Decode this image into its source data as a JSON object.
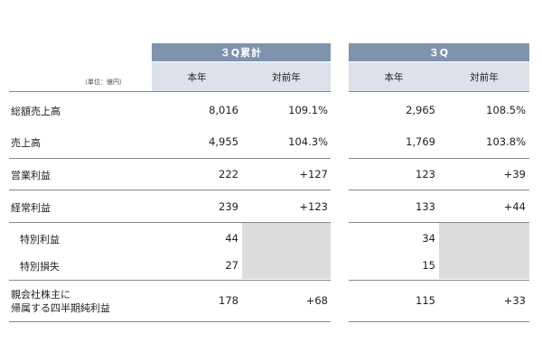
{
  "header": {
    "group1_title": "３Q累計",
    "group2_title": "３Q",
    "unit": "（単位：億円）",
    "col_current": "本年",
    "col_yoy": "対前年"
  },
  "rows": [
    {
      "label": "総額売上高",
      "g1_cur": "8,016",
      "g1_yoy": "109.1%",
      "g2_cur": "2,965",
      "g2_yoy": "108.5%"
    },
    {
      "label": "売上高",
      "g1_cur": "4,955",
      "g1_yoy": "104.3%",
      "g2_cur": "1,769",
      "g2_yoy": "103.8%"
    },
    {
      "label": "営業利益",
      "g1_cur": "222",
      "g1_yoy": "+127",
      "g2_cur": "123",
      "g2_yoy": "+39"
    },
    {
      "label": "経常利益",
      "g1_cur": "239",
      "g1_yoy": "+123",
      "g2_cur": "133",
      "g2_yoy": "+44"
    },
    {
      "label": "特別利益",
      "g1_cur": "44",
      "g1_yoy": "",
      "g2_cur": "34",
      "g2_yoy": ""
    },
    {
      "label": "特別損失",
      "g1_cur": "27",
      "g1_yoy": "",
      "g2_cur": "15",
      "g2_yoy": ""
    },
    {
      "label_line1": "親会社株主に",
      "label_line2": "帰属する四半期純利益",
      "g1_cur": "178",
      "g1_yoy": "+68",
      "g2_cur": "115",
      "g2_yoy": "+33"
    }
  ]
}
